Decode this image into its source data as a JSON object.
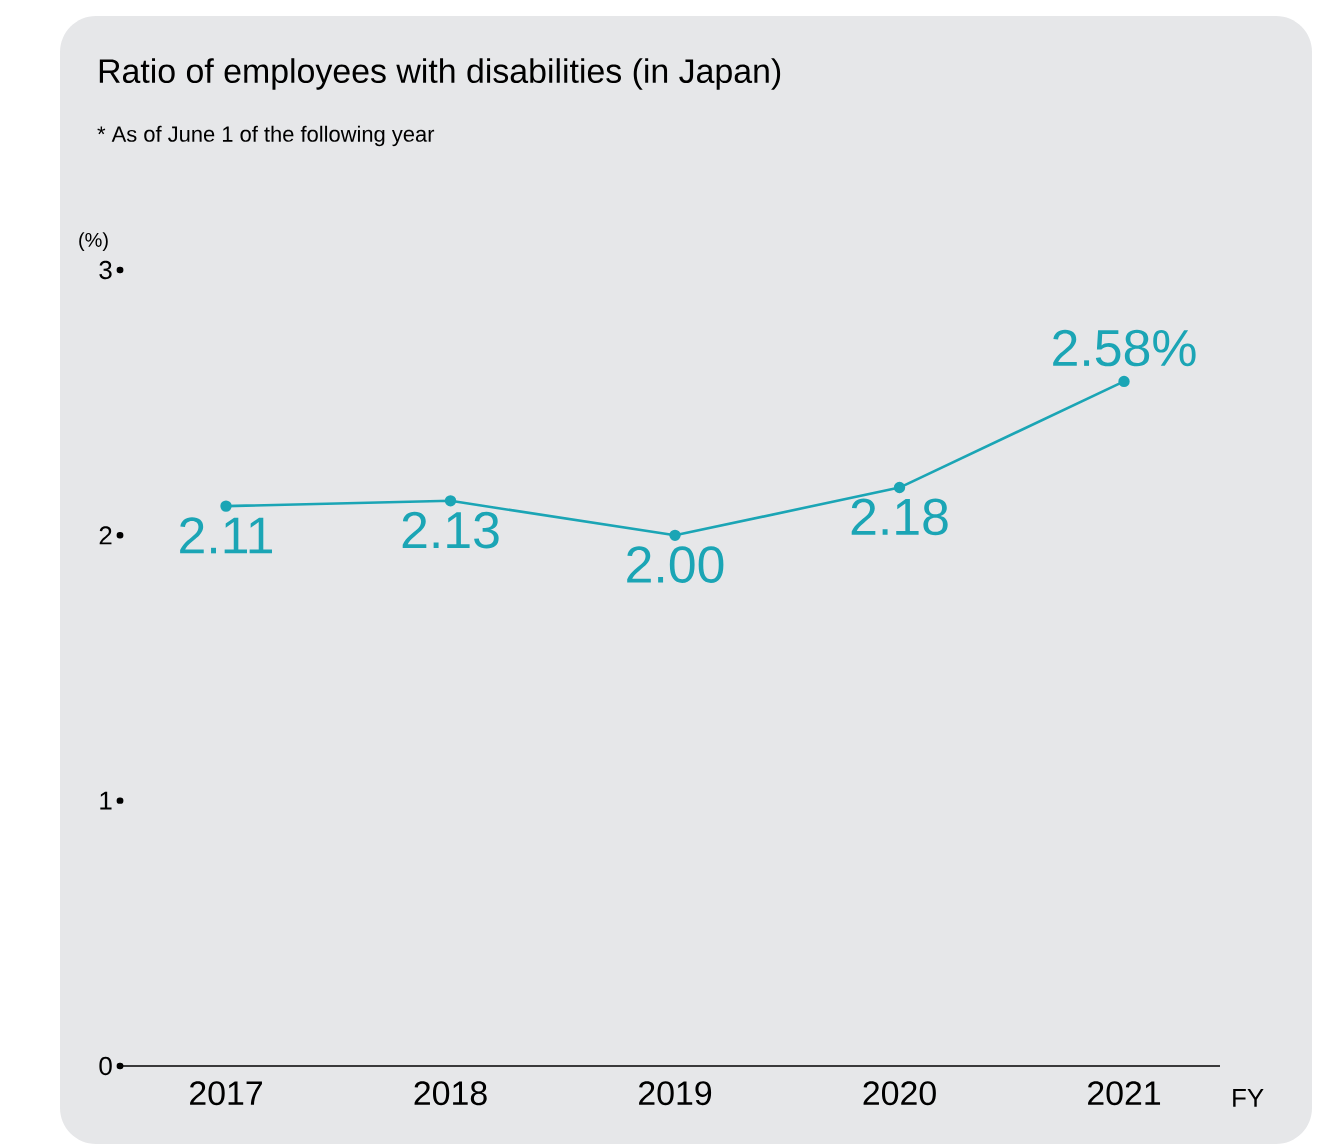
{
  "chart_data": {
    "type": "line",
    "title": "Ratio of employees with disabilities (in Japan)",
    "annotations": [
      "* As of June 1 of the following year"
    ],
    "categories": [
      "2017",
      "2018",
      "2019",
      "2020",
      "2021"
    ],
    "values": [
      2.11,
      2.13,
      2.0,
      2.18,
      2.58
    ],
    "value_labels": [
      "2.11",
      "2.13",
      "2.00",
      "2.18",
      "2.58%"
    ],
    "color": "#1ba5b5",
    "marker": "circle",
    "line_style": "solid",
    "xlabel": "FY",
    "ylabel": "(%)",
    "ylim": [
      0,
      3
    ],
    "yticks": [
      0,
      1,
      2,
      3
    ]
  }
}
